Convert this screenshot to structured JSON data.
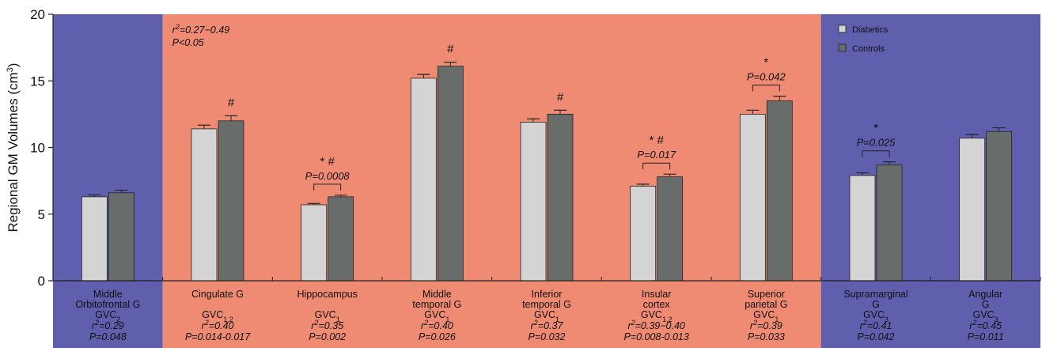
{
  "chart_data": {
    "type": "bar",
    "title": "",
    "ylabel": "Regional GM Volumes (cm³)",
    "ylabel_parts": {
      "text": "Regional GM Volumes (cm",
      "sup": "3",
      "close": ")"
    },
    "ylim": [
      0,
      20
    ],
    "yticks": [
      0,
      5,
      10,
      15,
      20
    ],
    "grid": false,
    "legend_position": "top-right",
    "colors": {
      "diabetics": "#d4d4d4",
      "controls": "#686d6c",
      "group_blue": "#5f5fae",
      "group_salmon": "#ef8b73"
    },
    "series": [
      {
        "name": "Diabetics",
        "values": [
          6.3,
          11.4,
          5.7,
          15.2,
          11.9,
          7.1,
          12.5,
          7.9,
          10.7
        ],
        "errors": [
          0.15,
          0.28,
          0.1,
          0.28,
          0.25,
          0.15,
          0.3,
          0.2,
          0.28
        ]
      },
      {
        "name": "Controls",
        "values": [
          6.6,
          12.0,
          6.3,
          16.1,
          12.5,
          7.8,
          13.5,
          8.7,
          11.2
        ],
        "errors": [
          0.2,
          0.38,
          0.12,
          0.3,
          0.3,
          0.2,
          0.35,
          0.22,
          0.28
        ]
      }
    ],
    "categories": [
      {
        "name_lines": [
          "Middle",
          "Orbitofrontal G"
        ],
        "gvc": "GVC",
        "gvc_sub": "2",
        "r2": "=0.29",
        "p": "P=0.048",
        "group": "blue"
      },
      {
        "name_lines": [
          "Cingulate G",
          ""
        ],
        "gvc": "GVC",
        "gvc_sub": "1,2",
        "r2": "=0.40",
        "p": "P=0.014-0.017",
        "group": "salmon"
      },
      {
        "name_lines": [
          "Hippocampus",
          ""
        ],
        "gvc": "GVC",
        "gvc_sub": "1",
        "r2": "=0.35",
        "p": "P=0.002",
        "group": "salmon"
      },
      {
        "name_lines": [
          "Middle",
          "temporal G"
        ],
        "gvc": "GVC",
        "gvc_sub": "1",
        "r2": "=0.40",
        "p": "P=0.026",
        "group": "salmon"
      },
      {
        "name_lines": [
          "Inferior",
          "temporal G"
        ],
        "gvc": "GVC",
        "gvc_sub": "1",
        "r2": "=0.37",
        "p": "P=0.032",
        "group": "salmon"
      },
      {
        "name_lines": [
          "Insular",
          "cortex"
        ],
        "gvc": "GVC",
        "gvc_sub": "1,2",
        "r2": "=0.39−0.40",
        "p": "P=0.008-0.013",
        "group": "salmon"
      },
      {
        "name_lines": [
          "Superior",
          "parietal G"
        ],
        "gvc": "GVC",
        "gvc_sub": "1",
        "r2": "=0.39",
        "p": "P=0.033",
        "group": "salmon"
      },
      {
        "name_lines": [
          "Supramarginal",
          "G"
        ],
        "gvc": "GVC",
        "gvc_sub": "3",
        "r2": "=0.41",
        "p": "P=0.042",
        "group": "blue"
      },
      {
        "name_lines": [
          "Angular",
          "G"
        ],
        "gvc": "GVC",
        "gvc_sub": "3",
        "r2": "=0.45",
        "p": "P=0.011",
        "group": "blue"
      }
    ],
    "annotations": [
      {
        "category_index": 1,
        "marks": "#",
        "p": "",
        "bracket": false
      },
      {
        "category_index": 2,
        "marks": "*  #",
        "p": "P=0.0008",
        "bracket": true
      },
      {
        "category_index": 3,
        "marks": "#",
        "p": "",
        "bracket": false
      },
      {
        "category_index": 4,
        "marks": "#",
        "p": "",
        "bracket": false
      },
      {
        "category_index": 5,
        "marks": "*  #",
        "p": "P=0.017",
        "bracket": true
      },
      {
        "category_index": 6,
        "marks": "*",
        "p": "P=0.042",
        "bracket": true
      },
      {
        "category_index": 7,
        "marks": "*",
        "p": "P=0.025",
        "bracket": true
      }
    ],
    "corner_note": {
      "r2": "=0.27−0.49",
      "p": "P<0.05"
    }
  }
}
